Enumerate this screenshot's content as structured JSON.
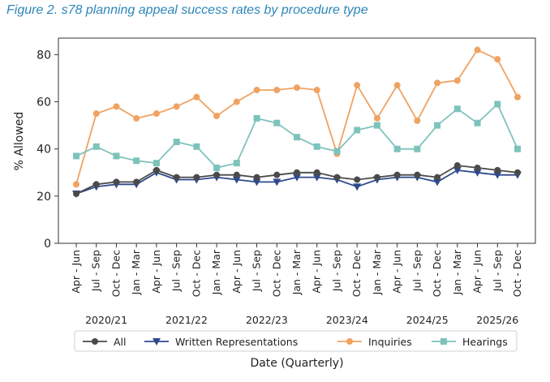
{
  "figure_title": "Figure 2. s78 planning appeal success rates by procedure type",
  "chart_data": {
    "type": "line",
    "ylabel": "% Allowed",
    "xlabel": "Date (Quarterly)",
    "ylim": [
      0,
      87
    ],
    "yticks": [
      0,
      20,
      40,
      60,
      80
    ],
    "grid": false,
    "legend_position": "bottom",
    "categories": [
      "Apr - Jun",
      "Jul - Sep",
      "Oct - Dec",
      "Jan - Mar",
      "Apr - Jun",
      "Jul - Sep",
      "Oct - Dec",
      "Jan - Mar",
      "Apr - Jun",
      "Jul - Sep",
      "Oct - Dec",
      "Jan - Mar",
      "Apr - Jun",
      "Jul - Sep",
      "Oct - Dec",
      "Jan - Mar",
      "Apr - Jun",
      "Jul - Sep",
      "Oct - Dec",
      "Jan - Mar",
      "Apr - Jun",
      "Jul - Sep",
      "Oct - Dec"
    ],
    "years": [
      {
        "label": "2020/21",
        "start": 0,
        "end": 3
      },
      {
        "label": "2021/22",
        "start": 4,
        "end": 7
      },
      {
        "label": "2022/23",
        "start": 8,
        "end": 11
      },
      {
        "label": "2023/24",
        "start": 12,
        "end": 15
      },
      {
        "label": "2024/25",
        "start": 16,
        "end": 19
      },
      {
        "label": "2025/26",
        "start": 20,
        "end": 22
      }
    ],
    "series": [
      {
        "name": "All",
        "color": "#4a4a4a",
        "marker": "circle",
        "values": [
          21,
          25,
          26,
          26,
          31,
          28,
          28,
          29,
          29,
          28,
          29,
          30,
          30,
          28,
          27,
          28,
          29,
          29,
          28,
          33,
          32,
          31,
          30
        ]
      },
      {
        "name": "Written Representations",
        "color": "#2e4a8c",
        "marker": "triangle-down",
        "values": [
          21,
          24,
          25,
          25,
          30,
          27,
          27,
          28,
          27,
          26,
          26,
          28,
          28,
          27,
          24,
          27,
          28,
          28,
          26,
          31,
          30,
          29,
          29
        ]
      },
      {
        "name": "Inquiries",
        "color": "#f0a262",
        "marker": "circle",
        "values": [
          25,
          55,
          58,
          53,
          55,
          58,
          62,
          54,
          60,
          65,
          65,
          66,
          65,
          38,
          67,
          53,
          67,
          52,
          68,
          69,
          82,
          78,
          62
        ]
      },
      {
        "name": "Hearings",
        "color": "#7dc3bb",
        "marker": "square",
        "values": [
          37,
          41,
          37,
          35,
          34,
          43,
          41,
          32,
          34,
          53,
          51,
          45,
          41,
          39,
          48,
          50,
          40,
          40,
          50,
          57,
          51,
          59,
          40
        ]
      }
    ]
  }
}
